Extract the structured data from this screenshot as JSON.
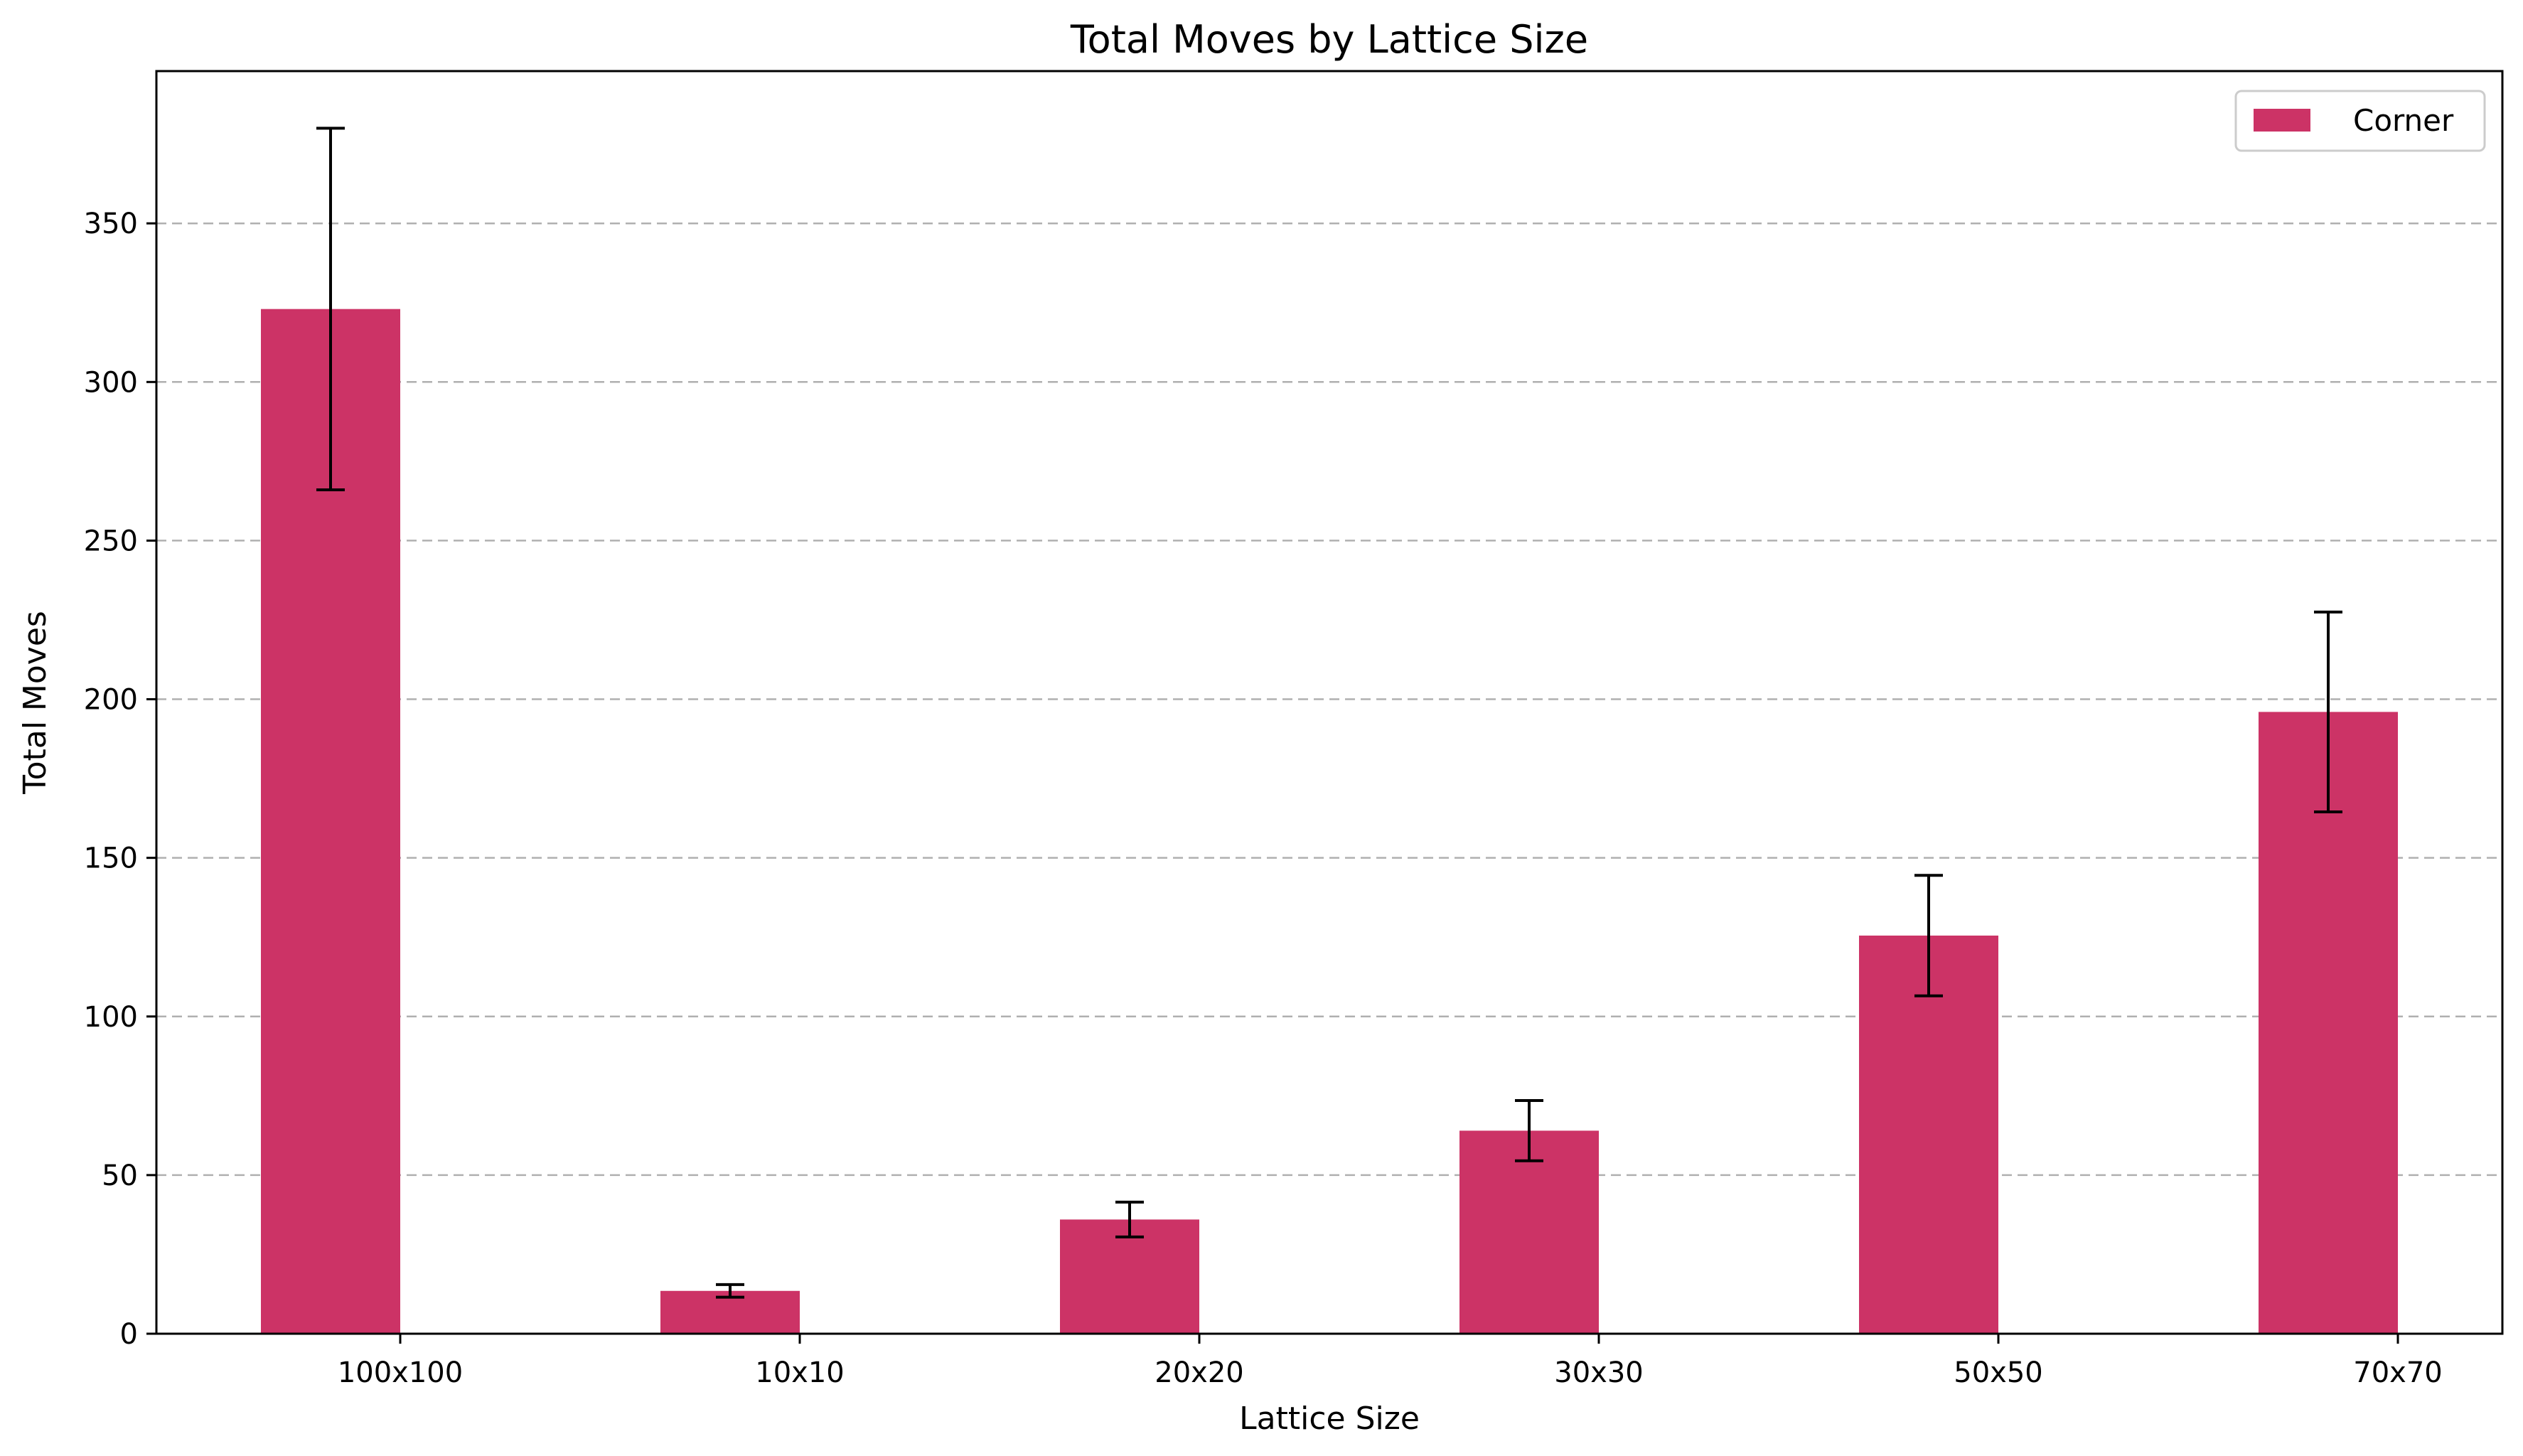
{
  "chart_data": {
    "type": "bar",
    "title": "Total Moves by Lattice Size",
    "xlabel": "Lattice Size",
    "ylabel": "Total Moves",
    "categories": [
      "100x100",
      "10x10",
      "20x20",
      "30x30",
      "50x50",
      "70x70"
    ],
    "series": [
      {
        "name": "Corner",
        "values": [
          323,
          13.5,
          36,
          64,
          125.5,
          196
        ],
        "error": [
          57,
          2,
          5.5,
          9.5,
          19,
          31.5
        ],
        "color": "#cc3366"
      }
    ],
    "yticks": [
      0,
      50,
      100,
      150,
      200,
      250,
      300,
      350
    ],
    "ylim": [
      0,
      398
    ],
    "grid": "y-dashed",
    "legend_position": "top-right"
  }
}
